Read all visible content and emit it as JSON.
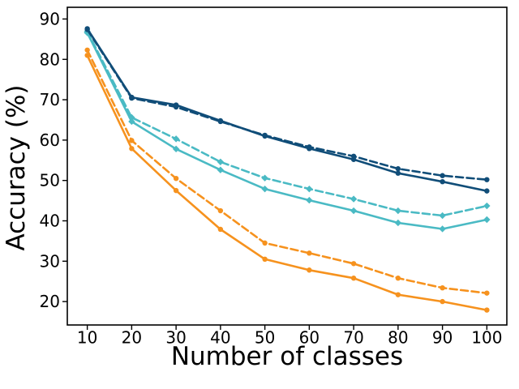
{
  "figure": {
    "background": "#ffffff",
    "frame_color": "#000000",
    "text_color": "#000000"
  },
  "chart_data": {
    "type": "line",
    "title": "",
    "xlabel": "Number of classes",
    "ylabel": "Accuracy (%)",
    "x": [
      10,
      20,
      30,
      40,
      50,
      60,
      70,
      80,
      90,
      100
    ],
    "xticks": [
      10,
      20,
      30,
      40,
      50,
      60,
      70,
      80,
      90,
      100
    ],
    "yticks": [
      20,
      30,
      40,
      50,
      60,
      70,
      80,
      90
    ],
    "xlim": [
      5.5,
      104.5
    ],
    "ylim": [
      14.2,
      92.9
    ],
    "grid": false,
    "legend_position": "none",
    "colors": {
      "dark_blue": "#104d78",
      "teal": "#4abac4",
      "orange": "#f6921e"
    },
    "series": [
      {
        "name": "orange-solid",
        "color": "#f6921e",
        "style": "solid",
        "marker": "circle",
        "values": [
          81.0,
          57.9,
          47.5,
          37.9,
          30.5,
          27.8,
          25.8,
          21.7,
          20.0,
          17.9
        ]
      },
      {
        "name": "orange-dashed",
        "color": "#f6921e",
        "style": "dashed",
        "marker": "circle",
        "values": [
          82.3,
          59.9,
          50.5,
          42.5,
          34.5,
          32.0,
          29.4,
          25.8,
          23.4,
          22.1
        ]
      },
      {
        "name": "teal-solid",
        "color": "#4abac4",
        "style": "solid",
        "marker": "diamond",
        "values": [
          86.6,
          64.6,
          57.8,
          52.6,
          47.9,
          45.1,
          42.5,
          39.5,
          38.0,
          40.3
        ]
      },
      {
        "name": "teal-dashed",
        "color": "#4abac4",
        "style": "dashed",
        "marker": "diamond",
        "values": [
          86.9,
          65.6,
          60.3,
          54.6,
          50.6,
          47.9,
          45.4,
          42.5,
          41.3,
          43.7
        ]
      },
      {
        "name": "dark-blue-solid",
        "color": "#104d78",
        "style": "solid",
        "marker": "circle",
        "values": [
          87.6,
          70.6,
          68.7,
          64.8,
          61.0,
          57.9,
          55.2,
          51.8,
          49.7,
          47.4
        ]
      },
      {
        "name": "dark-blue-dashed",
        "color": "#104d78",
        "style": "dashed",
        "marker": "circle",
        "values": [
          87.4,
          70.4,
          68.2,
          64.6,
          61.2,
          58.3,
          56.0,
          52.9,
          51.2,
          50.2
        ]
      }
    ]
  }
}
